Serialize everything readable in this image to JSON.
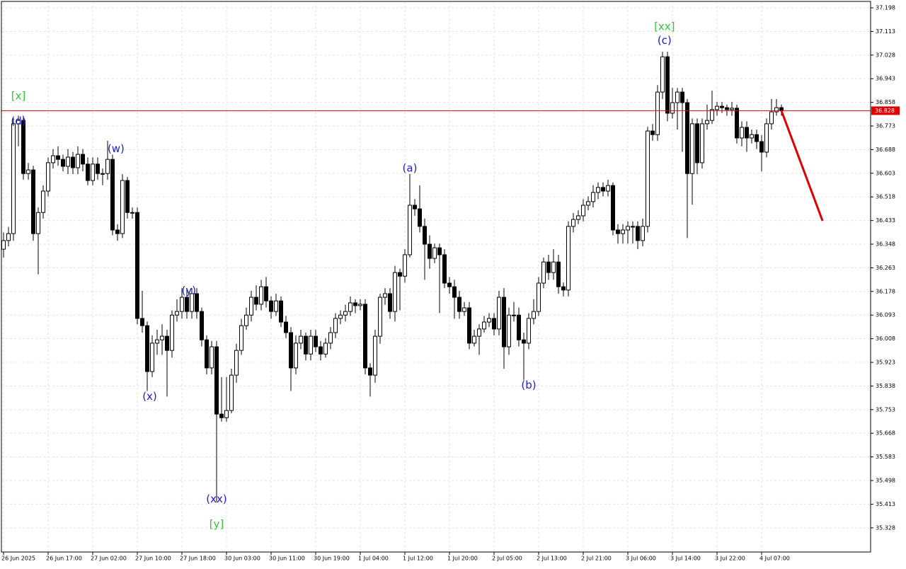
{
  "chart_data": {
    "type": "candlestick",
    "up_color": "#ffffff",
    "down_color": "#000000",
    "grid": true,
    "ylim": [
      35.241,
      37.221
    ],
    "yticks": [
      37.198,
      37.113,
      37.028,
      36.943,
      36.858,
      36.773,
      36.688,
      36.603,
      36.518,
      36.433,
      36.348,
      36.263,
      36.178,
      36.093,
      36.008,
      35.923,
      35.838,
      35.753,
      35.668,
      35.583,
      35.498,
      35.413,
      35.328
    ],
    "last_price": 36.828,
    "last_price_color": "#e00000",
    "categories": [
      "26 Jun 2025",
      null,
      null,
      null,
      null,
      null,
      null,
      null,
      null,
      "26 Jun 17:00",
      null,
      null,
      null,
      null,
      null,
      null,
      null,
      null,
      "27 Jun 02:00",
      null,
      null,
      null,
      null,
      null,
      null,
      null,
      null,
      "27 Jun 10:00",
      null,
      null,
      null,
      null,
      null,
      null,
      null,
      null,
      "27 Jun 18:00",
      null,
      null,
      null,
      null,
      null,
      null,
      null,
      null,
      "30 Jun 03:00",
      null,
      null,
      null,
      null,
      null,
      null,
      null,
      null,
      "30 Jun 11:00",
      null,
      null,
      null,
      null,
      null,
      null,
      null,
      null,
      "30 Jun 19:00",
      null,
      null,
      null,
      null,
      null,
      null,
      null,
      null,
      "1 Jul 04:00",
      null,
      null,
      null,
      null,
      null,
      null,
      null,
      null,
      "1 Jul 12:00",
      null,
      null,
      null,
      null,
      null,
      null,
      null,
      null,
      "1 Jul 20:00",
      null,
      null,
      null,
      null,
      null,
      null,
      null,
      null,
      "2 Jul 05:00",
      null,
      null,
      null,
      null,
      null,
      null,
      null,
      null,
      "2 Jul 13:00",
      null,
      null,
      null,
      null,
      null,
      null,
      null,
      null,
      "2 Jul 21:00",
      null,
      null,
      null,
      null,
      null,
      null,
      null,
      null,
      "3 Jul 06:00",
      null,
      null,
      null,
      null,
      null,
      null,
      null,
      null,
      "3 Jul 14:00",
      null,
      null,
      null,
      null,
      null,
      null,
      null,
      null,
      "3 Jul 22:00",
      null,
      null,
      null,
      null,
      null,
      null,
      null,
      null,
      "4 Jul 07:00",
      null,
      null,
      null,
      null
    ],
    "open": [
      36.33,
      36.361,
      36.386,
      36.781,
      36.793,
      36.602,
      36.615,
      36.386,
      36.462,
      36.539,
      36.641,
      36.666,
      36.653,
      36.628,
      36.661,
      36.623,
      36.671,
      36.636,
      36.577,
      36.636,
      36.602,
      36.602,
      36.653,
      36.399,
      36.386,
      36.577,
      36.462,
      36.462,
      36.081,
      36.055,
      35.89,
      35.992,
      36.004,
      36.017,
      35.966,
      36.093,
      36.106,
      36.157,
      36.106,
      36.17,
      36.106,
      36.004,
      35.903,
      35.979,
      35.737,
      35.724,
      35.75,
      35.877,
      35.966,
      36.055,
      36.093,
      36.157,
      36.132,
      36.195,
      36.144,
      36.106,
      36.144,
      36.068,
      36.03,
      35.903,
      35.992,
      36.017,
      35.953,
      36.017,
      35.979,
      35.953,
      35.992,
      36.03,
      36.081,
      36.093,
      36.106,
      36.137,
      36.127,
      36.132,
      35.903,
      35.877,
      36.017,
      36.157,
      36.17,
      36.106,
      36.246,
      36.233,
      36.31,
      36.488,
      36.475,
      36.412,
      36.348,
      36.297,
      36.335,
      36.31,
      36.208,
      36.195,
      36.157,
      36.106,
      36.119,
      35.992,
      36.017,
      36.043,
      36.068,
      36.081,
      36.043,
      36.157,
      35.979,
      36.093,
      36.093,
      36.004,
      35.992,
      36.081,
      36.106,
      36.208,
      36.284,
      36.246,
      36.284,
      36.195,
      36.183,
      36.412,
      36.437,
      36.45,
      36.488,
      36.501,
      36.534,
      36.552,
      36.539,
      36.559,
      36.399,
      36.386,
      36.399,
      36.412,
      36.412,
      36.361,
      36.412,
      36.755,
      36.742,
      36.895,
      37.022,
      36.819,
      36.857,
      36.895,
      36.857,
      36.602,
      36.781,
      36.641,
      36.781,
      36.793,
      36.832,
      36.844,
      36.839,
      36.832,
      36.837,
      36.73,
      36.768,
      36.73,
      36.742,
      36.717,
      36.679,
      36.781,
      36.824,
      36.839
    ],
    "high": [
      36.39,
      36.41,
      36.8,
      36.81,
      36.81,
      36.64,
      36.63,
      36.48,
      36.56,
      36.66,
      36.69,
      36.7,
      36.67,
      36.69,
      36.68,
      36.7,
      36.69,
      36.66,
      36.66,
      36.66,
      36.62,
      36.72,
      36.67,
      36.42,
      36.6,
      36.59,
      36.48,
      36.48,
      36.18,
      36.07,
      36.02,
      36.04,
      36.06,
      36.04,
      36.11,
      36.15,
      36.19,
      36.19,
      36.19,
      36.19,
      36.12,
      36.02,
      36.0,
      36.0,
      35.87,
      35.87,
      35.9,
      35.99,
      36.08,
      36.12,
      36.18,
      36.2,
      36.22,
      36.23,
      36.16,
      36.17,
      36.16,
      36.09,
      36.05,
      36.02,
      36.04,
      36.03,
      36.04,
      36.04,
      36.0,
      36.01,
      36.05,
      36.1,
      36.11,
      36.13,
      36.16,
      36.15,
      36.15,
      36.15,
      35.92,
      36.04,
      36.17,
      36.19,
      36.19,
      36.27,
      36.26,
      36.33,
      36.6,
      36.51,
      36.56,
      36.44,
      36.38,
      36.35,
      36.35,
      36.33,
      36.23,
      36.22,
      36.18,
      36.14,
      36.14,
      36.04,
      36.06,
      36.09,
      36.1,
      36.1,
      36.18,
      36.19,
      36.12,
      36.14,
      36.12,
      36.03,
      36.1,
      36.15,
      36.23,
      36.3,
      36.31,
      36.33,
      36.31,
      36.21,
      36.43,
      36.46,
      36.47,
      36.51,
      36.52,
      36.56,
      36.57,
      36.57,
      36.58,
      36.57,
      36.42,
      36.42,
      36.43,
      36.43,
      36.43,
      36.44,
      36.77,
      36.78,
      36.92,
      37.04,
      37.04,
      36.91,
      36.91,
      36.91,
      36.87,
      36.8,
      36.8,
      36.8,
      36.85,
      36.9,
      36.86,
      36.86,
      36.85,
      36.86,
      36.85,
      36.79,
      36.79,
      36.76,
      36.76,
      36.74,
      36.8,
      36.87,
      36.87,
      36.85
    ],
    "low": [
      36.3,
      36.34,
      36.36,
      36.7,
      36.58,
      36.58,
      36.36,
      36.24,
      36.44,
      36.52,
      36.62,
      36.63,
      36.61,
      36.6,
      36.6,
      36.6,
      36.61,
      36.56,
      36.56,
      36.58,
      36.56,
      36.58,
      36.38,
      36.36,
      36.37,
      36.44,
      36.44,
      36.06,
      36.03,
      35.82,
      35.87,
      35.95,
      35.95,
      35.8,
      35.94,
      36.07,
      36.08,
      36.08,
      36.08,
      36.08,
      35.98,
      35.88,
      35.88,
      35.42,
      35.71,
      35.71,
      35.74,
      35.85,
      35.95,
      36.04,
      36.07,
      36.11,
      36.11,
      36.12,
      36.08,
      36.09,
      36.05,
      36.01,
      35.82,
      35.88,
      35.97,
      35.93,
      35.93,
      35.96,
      35.93,
      35.94,
      35.97,
      36.01,
      36.06,
      36.07,
      36.09,
      36.1,
      36.11,
      35.88,
      35.8,
      35.85,
      35.99,
      36.13,
      36.08,
      36.07,
      36.11,
      36.21,
      36.3,
      36.45,
      36.39,
      36.22,
      36.26,
      36.28,
      36.1,
      36.19,
      36.17,
      36.08,
      36.08,
      36.09,
      35.97,
      35.98,
      35.95,
      36.03,
      36.05,
      36.02,
      36.02,
      35.9,
      35.95,
      36.07,
      35.98,
      35.86,
      35.97,
      36.06,
      36.09,
      36.19,
      36.22,
      36.22,
      36.17,
      36.16,
      36.16,
      36.39,
      36.42,
      36.43,
      36.47,
      36.48,
      36.51,
      36.52,
      36.52,
      36.38,
      36.35,
      36.35,
      36.35,
      36.35,
      36.33,
      36.34,
      36.39,
      36.72,
      36.72,
      36.87,
      36.79,
      36.8,
      36.76,
      36.68,
      36.37,
      36.49,
      36.6,
      36.62,
      36.76,
      36.78,
      36.81,
      36.82,
      36.81,
      36.81,
      36.71,
      36.7,
      36.68,
      36.71,
      36.69,
      36.61,
      36.66,
      36.76,
      36.81,
      36.81
    ],
    "close": [
      36.361,
      36.386,
      36.781,
      36.793,
      36.602,
      36.615,
      36.386,
      36.462,
      36.539,
      36.641,
      36.666,
      36.653,
      36.628,
      36.661,
      36.623,
      36.671,
      36.636,
      36.577,
      36.636,
      36.602,
      36.602,
      36.653,
      36.399,
      36.386,
      36.577,
      36.462,
      36.462,
      36.081,
      36.055,
      35.89,
      35.992,
      36.004,
      36.017,
      35.966,
      36.093,
      36.106,
      36.157,
      36.106,
      36.17,
      36.106,
      36.004,
      35.903,
      35.979,
      35.737,
      35.724,
      35.75,
      35.877,
      35.966,
      36.055,
      36.093,
      36.157,
      36.132,
      36.195,
      36.144,
      36.106,
      36.144,
      36.068,
      36.03,
      35.903,
      35.992,
      36.017,
      35.953,
      36.017,
      35.979,
      35.953,
      35.992,
      36.03,
      36.081,
      36.093,
      36.106,
      36.137,
      36.127,
      36.132,
      35.903,
      35.877,
      36.017,
      36.157,
      36.17,
      36.106,
      36.246,
      36.233,
      36.31,
      36.488,
      36.475,
      36.412,
      36.348,
      36.297,
      36.335,
      36.31,
      36.208,
      36.195,
      36.157,
      36.106,
      36.119,
      35.992,
      36.017,
      36.043,
      36.068,
      36.081,
      36.043,
      36.157,
      35.979,
      36.093,
      36.093,
      36.004,
      35.992,
      36.081,
      36.106,
      36.208,
      36.284,
      36.246,
      36.284,
      36.195,
      36.183,
      36.412,
      36.437,
      36.45,
      36.488,
      36.501,
      36.534,
      36.552,
      36.539,
      36.559,
      36.399,
      36.386,
      36.399,
      36.412,
      36.412,
      36.361,
      36.412,
      36.755,
      36.742,
      36.895,
      37.022,
      36.819,
      36.857,
      36.895,
      36.857,
      36.602,
      36.781,
      36.641,
      36.781,
      36.793,
      36.832,
      36.844,
      36.839,
      36.832,
      36.837,
      36.73,
      36.768,
      36.73,
      36.742,
      36.717,
      36.679,
      36.781,
      36.824,
      36.839,
      36.828
    ],
    "forecast": {
      "color": "#e00000",
      "x": [
        157,
        165.3
      ],
      "y": [
        36.828,
        36.432
      ]
    },
    "annotations": [
      {
        "text": "[x]",
        "color": "#2ecc2e",
        "x": 3,
        "y": 36.88
      },
      {
        "text": "(d)",
        "color": "#1c1cd0",
        "x": 3,
        "y": 36.79
      },
      {
        "text": "(w)",
        "color": "#1c1cd0",
        "x": 22.7,
        "y": 36.69
      },
      {
        "text": "(x)",
        "color": "#1c1cd0",
        "x": 29.5,
        "y": 35.8
      },
      {
        "text": "(y)",
        "color": "#1c1cd0",
        "x": 37.4,
        "y": 36.18
      },
      {
        "text": "(xx)",
        "color": "#1c1cd0",
        "x": 43,
        "y": 35.43
      },
      {
        "text": "[y]",
        "color": "#2ecc2e",
        "x": 43,
        "y": 35.34
      },
      {
        "text": "(a)",
        "color": "#1c1cd0",
        "x": 82,
        "y": 36.62
      },
      {
        "text": "(b)",
        "color": "#1c1cd0",
        "x": 106,
        "y": 35.84
      },
      {
        "text": "(c)",
        "color": "#1c1cd0",
        "x": 133.4,
        "y": 37.08
      },
      {
        "text": "[xx]",
        "color": "#2ecc2e",
        "x": 133.4,
        "y": 37.13
      }
    ]
  }
}
